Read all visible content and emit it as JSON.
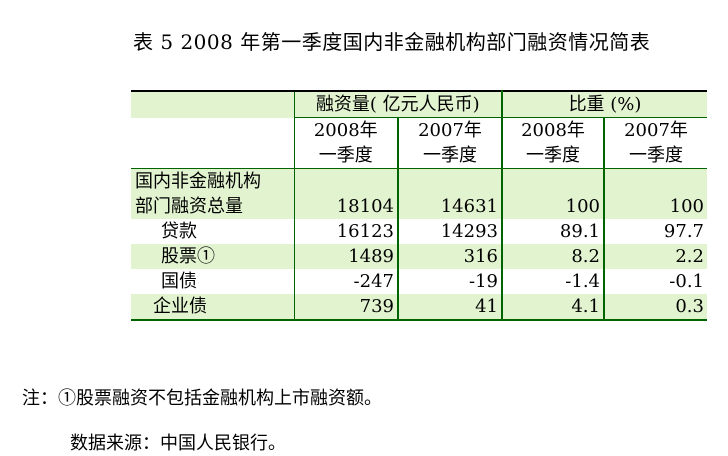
{
  "title": "表 5 2008 年第一季度国内非金融机构部门融资情况简表",
  "header": {
    "group1": "融资量( 亿元人民币)",
    "group2": "比重 (%)",
    "sub": [
      {
        "year": "2008年",
        "period": "一季度"
      },
      {
        "year": "2007年",
        "period": "一季度"
      },
      {
        "year": "2008年",
        "period": "一季度"
      },
      {
        "year": "2007年",
        "period": "一季度"
      }
    ]
  },
  "rows": [
    {
      "label_line1": "国内非金融机构",
      "label_line2": "部门融资总量",
      "v": [
        "18104",
        "14631",
        "100",
        "100"
      ]
    },
    {
      "label": "贷款",
      "v": [
        "16123",
        "14293",
        "89.1",
        "97.7"
      ]
    },
    {
      "label": "股票①",
      "v": [
        "1489",
        "316",
        "8.2",
        "2.2"
      ]
    },
    {
      "label": "国债",
      "v": [
        "-247",
        "-19",
        "-1.4",
        "-0.1"
      ]
    },
    {
      "label": "企业债",
      "v": [
        "739",
        "41",
        "4.1",
        "0.3"
      ]
    }
  ],
  "note": "注：①股票融资不包括金融机构上市融资额。",
  "source": "数据来源：中国人民银行。"
}
